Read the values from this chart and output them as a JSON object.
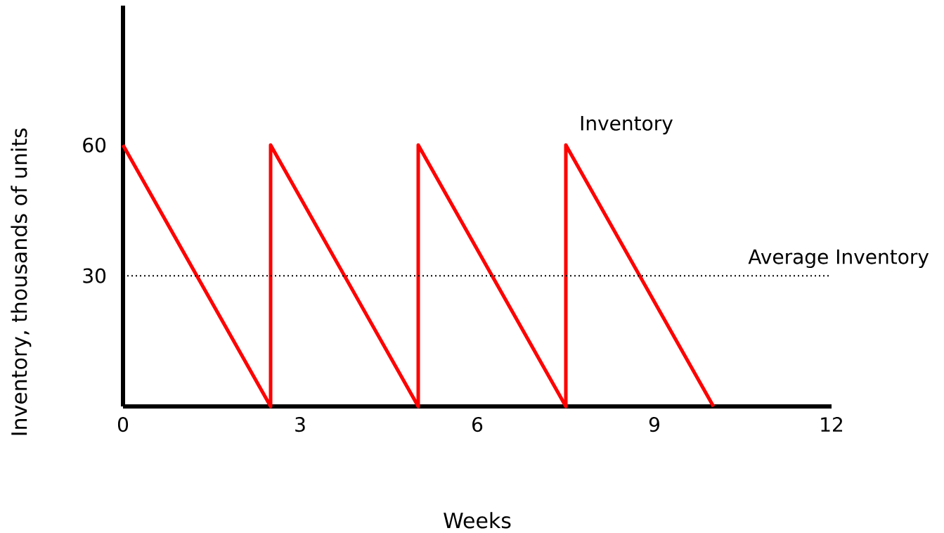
{
  "chart_data": {
    "type": "line",
    "xlabel": "Weeks",
    "ylabel": "Inventory, thousands of units",
    "x": [
      0,
      2.5,
      2.5,
      5,
      5,
      7.5,
      7.5,
      10
    ],
    "series": [
      {
        "color": "#ff0000",
        "values": [
          60,
          0,
          60,
          0,
          60,
          0,
          60,
          0
        ]
      }
    ],
    "xlim": [
      0,
      12
    ],
    "ylim": [
      0,
      92
    ],
    "xticks": [
      0,
      3,
      6,
      9,
      12
    ],
    "yticks": [
      30,
      60
    ],
    "ref_lines": [
      {
        "axis": "y",
        "value": 30,
        "label": "Average Inventory",
        "color": "#000000",
        "line_style": "dotted"
      }
    ],
    "annotations": [
      {
        "text": "Inventory",
        "x": 7.5,
        "y": 60
      }
    ],
    "marker": "none",
    "line_style": "solid"
  }
}
